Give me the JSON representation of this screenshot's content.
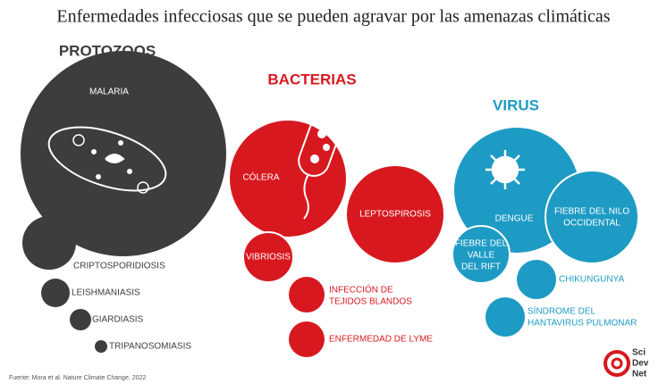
{
  "title": "Enfermedades infecciosas que se pueden agravar por las amenazas climáticas",
  "groups": [
    {
      "name": "PROTOZOOS",
      "diseases": [
        {
          "lines": [
            "MALARIA"
          ]
        },
        {
          "lines": [
            "CRIPTOSPORIDIOSIS"
          ]
        },
        {
          "lines": [
            "LEISHMANIASIS"
          ]
        },
        {
          "lines": [
            "GIARDIASIS"
          ]
        },
        {
          "lines": [
            "TRIPANOSOMIASIS"
          ]
        }
      ]
    },
    {
      "name": "BACTERIAS",
      "diseases": [
        {
          "lines": [
            "CÓLERA"
          ]
        },
        {
          "lines": [
            "LEPTOSPIROSIS"
          ]
        },
        {
          "lines": [
            "VIBRIOSIS"
          ]
        },
        {
          "lines": [
            "INFECCIÓN DE",
            "TEJIDOS BLANDOS"
          ]
        },
        {
          "lines": [
            "ENFERMEDAD DE LYME"
          ]
        }
      ]
    },
    {
      "name": "VIRUS",
      "diseases": [
        {
          "lines": [
            "DENGUE"
          ]
        },
        {
          "lines": [
            "FIEBRE DEL NILO",
            "OCCIDENTAL"
          ]
        },
        {
          "lines": [
            "FIEBRE DEL",
            "VALLE",
            "DEL RIFT"
          ]
        },
        {
          "lines": [
            "CHIKUNGUNYA"
          ]
        },
        {
          "lines": [
            "SÍNDROME DEL",
            "HANTAVIRUS PULMONAR"
          ]
        }
      ]
    }
  ],
  "source": "Fuente: Mora et al. Nature Climate Change, 2022",
  "logo": [
    "Sci",
    "Dev",
    "Net"
  ]
}
